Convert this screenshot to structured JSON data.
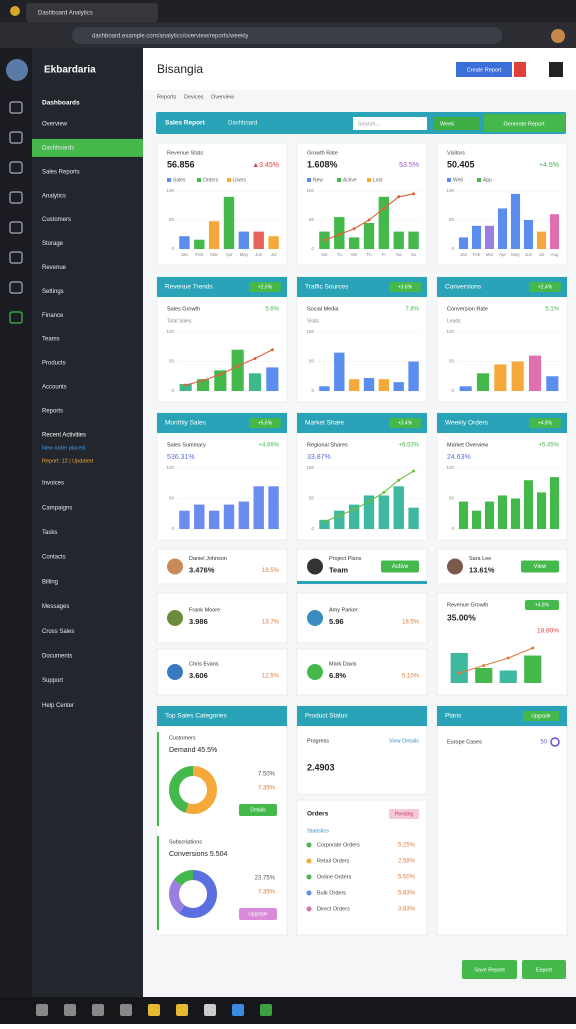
{
  "browser": {
    "tab_title": "Dashboard Analytics",
    "url": "dashboard.example.com/analytics/overview/reports/weekly"
  },
  "sidebar": {
    "brand": "Ekbardaria",
    "section": "Dashboards",
    "active_item": "Dashboards",
    "items_a": [
      "Overview",
      "Dashboards",
      "Sales Reports",
      "Analytics",
      "Customers",
      "Storage",
      "Revenue",
      "Settings",
      "Finance",
      "Teams",
      "Products",
      "Accounts",
      "Reports"
    ],
    "recent_title": "Recent Activities",
    "recent_notes": [
      "New order placed",
      "Report: 12 | Updated"
    ],
    "items_b": [
      "Invoices",
      "Campaigns",
      "Tasks",
      "Contacts",
      "Billing",
      "Messages",
      "Cross Sales",
      "Documents",
      "Support",
      "Help Center"
    ]
  },
  "header": {
    "title": "Bisangia",
    "button": "Create Report",
    "tabs": [
      "Reports",
      "Devices",
      "Overview"
    ]
  },
  "toolbar": {
    "title": "Sales Report",
    "subtitle": "Dashboard",
    "search": "Search...",
    "select": "Week",
    "button": "Generate Report"
  },
  "stat_cards": [
    {
      "title": "Revenue Stats",
      "value": "56.856",
      "delta": "▲3.45%",
      "delta_color": "#e0403a",
      "legend": [
        "Sales",
        "Orders",
        "Users"
      ],
      "chart": {
        "categories": [
          "Jan",
          "Feb",
          "Mar",
          "Apr",
          "May",
          "Jun",
          "Jul"
        ],
        "values": [
          22,
          16,
          48,
          90,
          30,
          30,
          22
        ],
        "colors": [
          "#5b8def",
          "#45b84c",
          "#f4a93a",
          "#45b84c",
          "#5b8def",
          "#e8615a",
          "#f4a93a"
        ],
        "ylim": [
          0,
          100
        ],
        "yticks": [
          0,
          50,
          100
        ]
      }
    },
    {
      "title": "Growth Rate",
      "value": "1.608%",
      "delta": "53.5%",
      "delta_color": "#9b59d0",
      "legend": [
        "New",
        "Active",
        "Lost"
      ],
      "chart": {
        "categories": [
          "Mo",
          "Tu",
          "We",
          "Th",
          "Fr",
          "Sa",
          "Su"
        ],
        "values": [
          30,
          55,
          20,
          45,
          90,
          30,
          30
        ],
        "colors": [
          "#45b84c"
        ],
        "line": [
          15,
          25,
          35,
          50,
          70,
          90,
          95
        ],
        "line_color": "#e0603a",
        "ylim": [
          0,
          100
        ],
        "yticks": [
          0,
          50,
          100
        ]
      }
    },
    {
      "title": "Visitors",
      "value": "50.405",
      "delta": "+4.5%",
      "delta_color": "#45b84c",
      "legend": [
        "Web",
        "App"
      ],
      "chart": {
        "categories": [
          "Jan",
          "Feb",
          "Mar",
          "Apr",
          "May",
          "Jun",
          "Jul",
          "Aug"
        ],
        "values": [
          20,
          40,
          40,
          70,
          95,
          50,
          30,
          60
        ],
        "colors": [
          "#5b8def",
          "#5b8def",
          "#9b7fe0",
          "#5b8def",
          "#5b8def",
          "#5b8def",
          "#f4a93a",
          "#e070b0"
        ],
        "ylim": [
          0,
          100
        ],
        "yticks": [
          0,
          50,
          100
        ]
      }
    }
  ],
  "chart_panels": [
    {
      "title": "Revenue Trends",
      "badge": "+2.5%",
      "subtitle": "Sales Growth",
      "delta": "5.6%",
      "value": "Total Sales",
      "chart": {
        "values": [
          12,
          20,
          35,
          70,
          30,
          40
        ],
        "colors": [
          "#3fb88a",
          "#45b84c",
          "#45b84c",
          "#45b84c",
          "#3fb88a",
          "#5b8def"
        ],
        "line": [
          10,
          18,
          28,
          42,
          55,
          70
        ],
        "line_color": "#e0603a",
        "ylim": [
          0,
          100
        ],
        "yticks": [
          0,
          50,
          100
        ]
      }
    },
    {
      "title": "Traffic Sources",
      "badge": "+3.6%",
      "subtitle": "Social Media",
      "delta": "7.8%",
      "value": "Visits",
      "chart": {
        "values": [
          8,
          65,
          20,
          22,
          20,
          15,
          50
        ],
        "colors": [
          "#5b8def",
          "#5b8def",
          "#f4a93a",
          "#5b8def",
          "#f4a93a",
          "#5b8def",
          "#5b8def"
        ],
        "ylim": [
          0,
          100
        ],
        "yticks": [
          0,
          50,
          100
        ]
      }
    },
    {
      "title": "Conversions",
      "badge": "+2.4%",
      "subtitle": "Conversion Rate",
      "delta": "5.1%",
      "value": "Leads",
      "chart": {
        "values": [
          8,
          30,
          45,
          50,
          60,
          25
        ],
        "colors": [
          "#5b8def",
          "#45b84c",
          "#f4a93a",
          "#f4a93a",
          "#e070b0",
          "#5b8def"
        ],
        "ylim": [
          0,
          100
        ],
        "yticks": [
          0,
          50,
          100
        ]
      }
    },
    {
      "title": "Monthly Sales",
      "badge": "+5.6%",
      "subtitle": "Sales Summary",
      "delta": "+4.66%",
      "value": "536.31%",
      "chart": {
        "values": [
          30,
          40,
          30,
          40,
          45,
          70,
          70
        ],
        "colors": [
          "#6b8cef"
        ],
        "ylim": [
          0,
          100
        ],
        "yticks": [
          0,
          50,
          100
        ]
      }
    },
    {
      "title": "Market Share",
      "badge": "+3.4%",
      "subtitle": "Regional Shares",
      "delta": "+6.53%",
      "value": "33.87%",
      "chart": {
        "values": [
          15,
          30,
          40,
          55,
          55,
          70,
          35
        ],
        "colors": [
          "#3fb8a0"
        ],
        "line": [
          12,
          22,
          32,
          45,
          60,
          80,
          95
        ],
        "line_color": "#6bbf3a",
        "ylim": [
          0,
          100
        ],
        "yticks": [
          0,
          50,
          100
        ]
      }
    },
    {
      "title": "Weekly Orders",
      "badge": "+4.8%",
      "subtitle": "Market Overview",
      "delta": "+5.45%",
      "value": "24.63%",
      "chart": {
        "values": [
          45,
          30,
          45,
          55,
          50,
          80,
          60,
          85
        ],
        "colors": [
          "#45b84c"
        ],
        "ylim": [
          0,
          100
        ],
        "yticks": [
          0,
          50,
          100
        ]
      }
    }
  ],
  "user_cards": [
    {
      "name": "Daniel Johnson",
      "value": "3.476%",
      "delta": "18.5%"
    },
    {
      "name": "Project Plans",
      "value": "Team",
      "delta": "Active"
    },
    {
      "name": "Sara Lee",
      "value": "13.61%",
      "delta": "View"
    },
    {
      "name": "Frank Moore",
      "value": "3.986",
      "delta": "13.7%"
    },
    {
      "name": "Amy Parker",
      "value": "5.96",
      "delta": "18.5%"
    },
    {
      "name": "Chris Evans",
      "value": "3.606",
      "delta": "12.5%"
    },
    {
      "name": "Mark Davis",
      "value": "6.8%",
      "delta": "5.10%"
    }
  ],
  "trend_card": {
    "title": "Revenue Growth",
    "badge": "+4.8%",
    "value": "35.00%",
    "delta": "18.80%",
    "chart": {
      "values": [
        60,
        30,
        25,
        55
      ],
      "colors": [
        "#3fb8a0",
        "#45b84c",
        "#3fb8a0",
        "#45b84c"
      ],
      "line": [
        20,
        35,
        50,
        70
      ],
      "line_color": "#e07a3a",
      "ylim": [
        0,
        100
      ]
    }
  },
  "categories_panel": {
    "title": "Top Sales Categories",
    "sections": [
      {
        "title": "Customers",
        "subtitle": "Demand 45.5%",
        "values": [
          55,
          45
        ],
        "colors": [
          "#f4a93a",
          "#45b84c"
        ],
        "stats": [
          "7.50%",
          "7.35%"
        ],
        "button": "Details",
        "button_color": "#45b84c"
      },
      {
        "title": "Subscriptions",
        "subtitle": "Conversions 5.504",
        "values": [
          60,
          25,
          15
        ],
        "colors": [
          "#5b6fe0",
          "#9b7fe0",
          "#45b84c"
        ],
        "stats": [
          "23.75%",
          "7.35%"
        ],
        "button": "Upgrade",
        "button_color": "#d98ad8"
      }
    ]
  },
  "status_panel": {
    "title": "Product Status",
    "subtitle": "Progress",
    "link": "View Details",
    "value": "2.4903",
    "list_title": "Orders",
    "list_badge": "Pending",
    "list_subtitle": "Statistics",
    "items": [
      {
        "name": "Corporate Orders",
        "value": "5.25%"
      },
      {
        "name": "Retail Orders",
        "value": "2.58%"
      },
      {
        "name": "Online Orders",
        "value": "5.50%"
      },
      {
        "name": "Bulk Orders",
        "value": "5.83%"
      },
      {
        "name": "Direct Orders",
        "value": "3.83%"
      }
    ]
  },
  "plans_panel": {
    "title": "Plans",
    "badge": "Upgrade",
    "row": "Europe Cases",
    "row_value": "50"
  },
  "footer": {
    "buttons": [
      "Save Report",
      "Export"
    ]
  }
}
